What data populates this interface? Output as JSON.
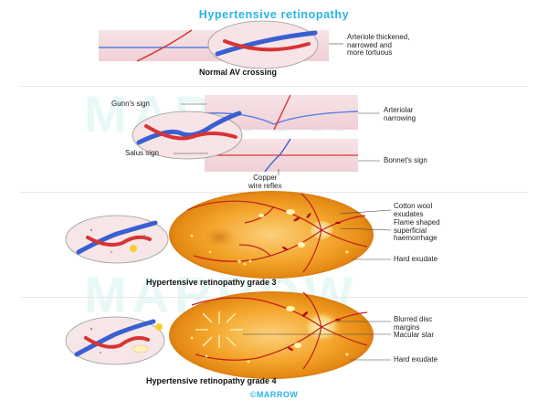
{
  "title": "Hypertensive retinopathy",
  "watermark": "MARROW",
  "sections": {
    "normal": {
      "caption": "Normal AV crossing",
      "label_arteriole": "Arteriole thickened,\nnarrowed and\nmore tortuous"
    },
    "signs": {
      "gunn": "Gunn's sign",
      "salus": "Salus sign",
      "arteriolar": "Arteriolar\nnarrowing",
      "bonnet": "Bonnet's sign",
      "copper": "Copper\nwire reflex"
    },
    "grade3": {
      "caption": "Hypertensive retinopathy grade 3",
      "cotton": "Cotton wool\nexudates",
      "flame": "Flame shaped\nsuperficial\nhaemorrhage",
      "hard": "Hard exudate"
    },
    "grade4": {
      "caption": "Hypertensive retinopathy grade 4",
      "blurred": "Blurred disc\nmargins",
      "macular": "Macular star",
      "hard": "Hard exudate"
    }
  },
  "footer": "©MARROW",
  "colors": {
    "title": "#27b5e6",
    "artery": "#d83434",
    "vein": "#3a5fd0",
    "fundus": "#f0a020",
    "panel": "#f6e6e8"
  }
}
